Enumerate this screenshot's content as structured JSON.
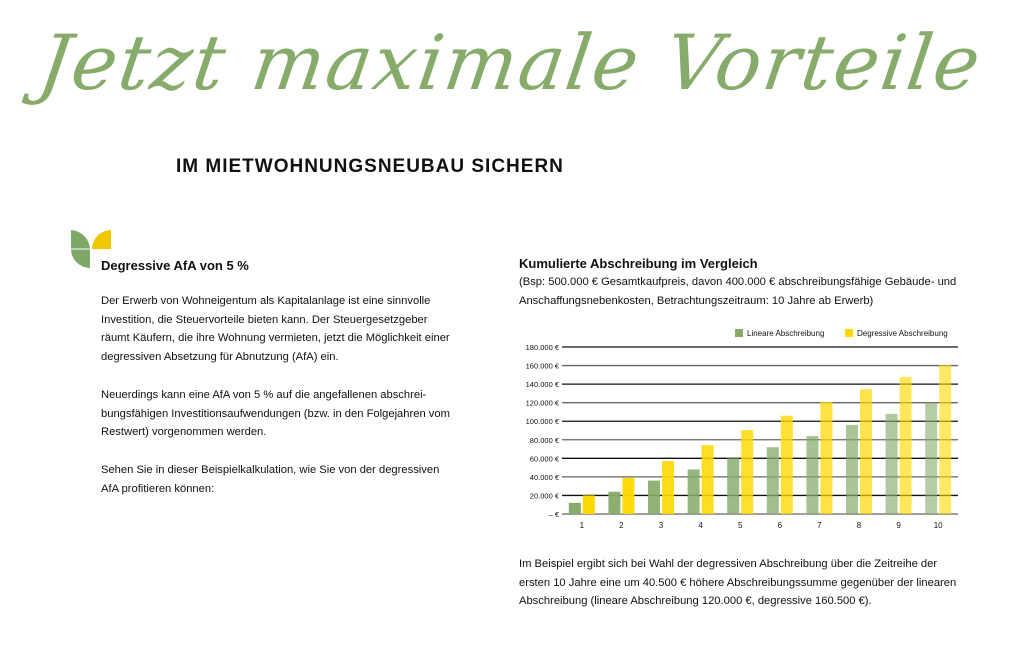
{
  "header": {
    "script_title": "Jetzt maximale Vorteile",
    "subtitle": "IM MIETWOHNUNGSNEUBAU SICHERN"
  },
  "left": {
    "heading": "Degressive AfA von 5 %",
    "paragraphs": [
      "Der Erwerb von Wohneigentum als Kapitalanlage ist eine sinnvolle Investition, die Steuervorteile bieten kann. Der Steuergesetzgeber räumt Käufern, die ihre Wohnung vermieten, jetzt die Möglichkeit einer degressiven Absetzung für Abnutzung (AfA) ein.",
      "Neuerdings kann eine AfA von 5 % auf die angefallenen abschrei-bungsfähigen Investitionsaufwendungen (bzw. in den Folgejahren vom Restwert) vorgenommen werden.",
      "Sehen Sie in dieser Beispielkalkulation, wie Sie von der degressiven AfA profitieren können:"
    ]
  },
  "right": {
    "heading": "Kumulierte Abschreibung im Vergleich",
    "caption": "(Bsp: 500.000 € Gesamtkaufpreis, davon 400.000 € abschreibungsfähige Gebäude- und Anschaffungsnebenkosten, Betrachtungszeitraum: 10 Jahre ab Erwerb)",
    "conclusion": "Im Beispiel ergibt sich bei Wahl der degressiven Abschreibung über die Zeitreihe der ersten 10 Jahre eine um 40.500 € höhere Abschreibungssumme gegenüber der linearen Abschreibung (lineare Abschreibung 120.000 €, degressive 160.500 €)."
  },
  "colors": {
    "green": "#86ab6b",
    "yellow": "#ffd800",
    "logo_green": "#7fa76a",
    "logo_yellow": "#f0c800"
  },
  "chart_data": {
    "type": "bar",
    "categories": [
      "1",
      "2",
      "3",
      "4",
      "5",
      "6",
      "7",
      "8",
      "9",
      "10"
    ],
    "series": [
      {
        "name": "Lineare Abschreibung",
        "values": [
          12000,
          24000,
          36000,
          48000,
          60000,
          72000,
          84000,
          96000,
          108000,
          120000
        ]
      },
      {
        "name": "Degressive Abschreibung",
        "values": [
          20000,
          39000,
          57050,
          74198,
          90488,
          105963,
          120665,
          134632,
          147900,
          160505
        ]
      }
    ],
    "ylim": [
      0,
      180000
    ],
    "yticks": [
      "– €",
      "20.000 €",
      "40.000 €",
      "60.000 €",
      "80.000 €",
      "100.000 €",
      "120.000 €",
      "140.000 €",
      "160.000 €",
      "180.000 €"
    ],
    "grid": true,
    "legend": "top-right"
  }
}
